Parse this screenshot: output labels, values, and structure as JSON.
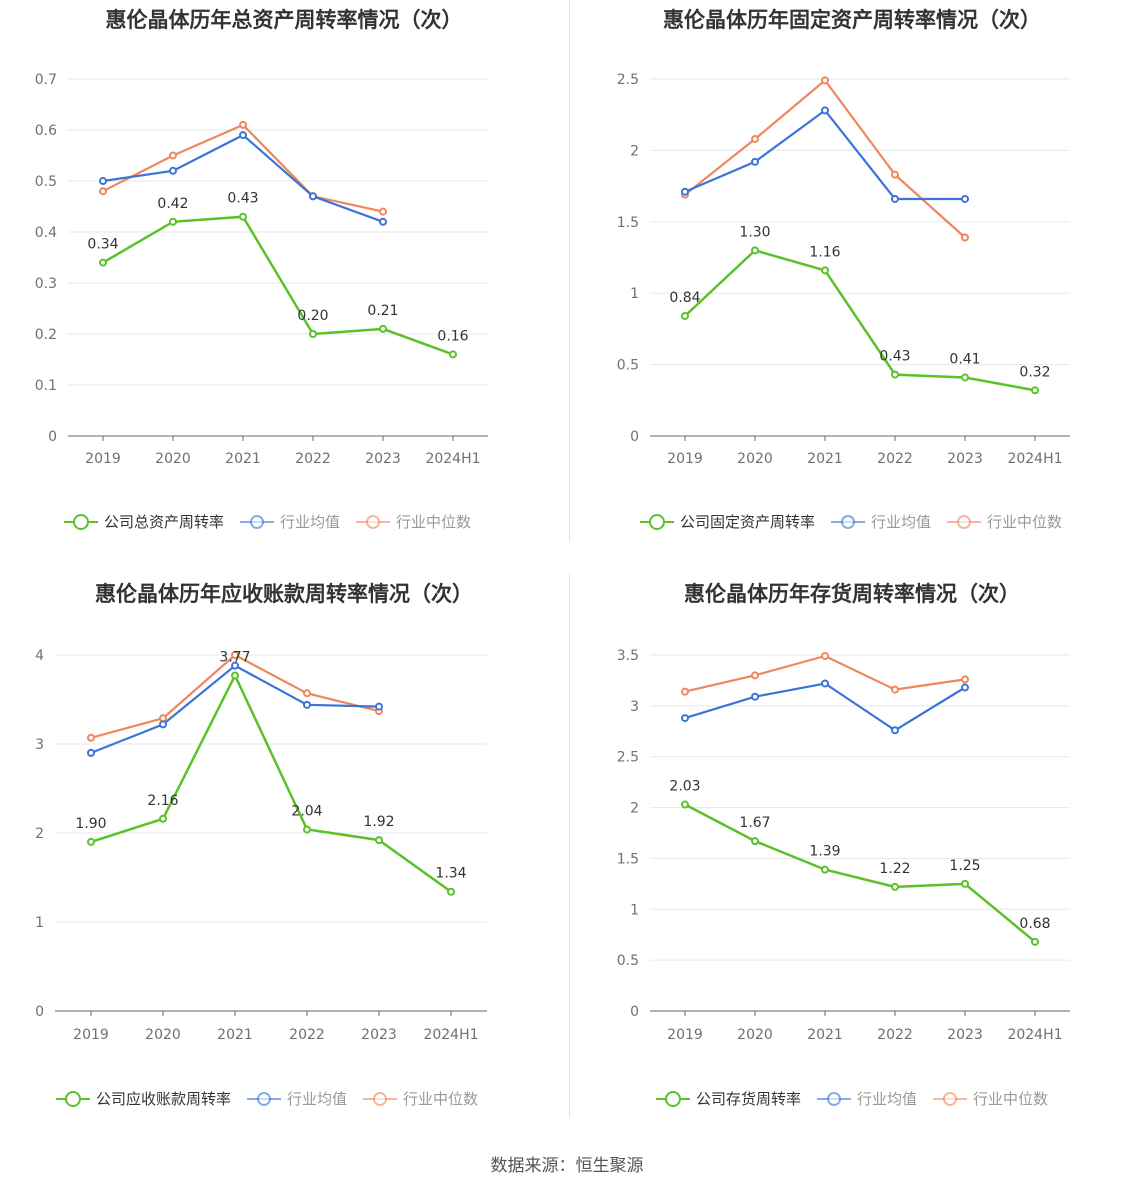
{
  "footer": "数据来源：恒生聚源",
  "colors": {
    "company": "#5ac12a",
    "average": "#3a74d9",
    "median": "#f0875c",
    "grid": "#e4e7ee",
    "axis": "#666666"
  },
  "chart_data": [
    {
      "type": "line",
      "title": "惠伦晶体历年总资产周转率情况（次）",
      "categories": [
        "2019",
        "2020",
        "2021",
        "2022",
        "2023",
        "2024H1"
      ],
      "ylim": [
        0,
        0.7
      ],
      "yticks": [
        0,
        0.1,
        0.2,
        0.3,
        0.4,
        0.5,
        0.6,
        0.7
      ],
      "ytick_labels": [
        "0",
        "0.1",
        "0.2",
        "0.3",
        "0.4",
        "0.5",
        "0.6",
        "0.7"
      ],
      "grid": true,
      "legend_position": "bottom",
      "series": [
        {
          "name": "公司总资产周转率",
          "role": "company",
          "values": [
            0.34,
            0.42,
            0.43,
            0.2,
            0.21,
            0.16
          ],
          "labels": [
            "0.34",
            "0.42",
            "0.43",
            "0.20",
            "0.21",
            "0.16"
          ]
        },
        {
          "name": "行业均值",
          "role": "average",
          "values": [
            0.5,
            0.52,
            0.59,
            0.47,
            0.42,
            null
          ]
        },
        {
          "name": "行业中位数",
          "role": "median",
          "values": [
            0.48,
            0.55,
            0.61,
            0.47,
            0.44,
            null
          ]
        }
      ]
    },
    {
      "type": "line",
      "title": "惠伦晶体历年固定资产周转率情况（次）",
      "categories": [
        "2019",
        "2020",
        "2021",
        "2022",
        "2023",
        "2024H1"
      ],
      "ylim": [
        0,
        2.5
      ],
      "yticks": [
        0,
        0.5,
        1,
        1.5,
        2,
        2.5
      ],
      "ytick_labels": [
        "0",
        "0.5",
        "1",
        "1.5",
        "2",
        "2.5"
      ],
      "grid": true,
      "legend_position": "bottom",
      "series": [
        {
          "name": "公司固定资产周转率",
          "role": "company",
          "values": [
            0.84,
            1.3,
            1.16,
            0.43,
            0.41,
            0.32
          ],
          "labels": [
            "0.84",
            "1.30",
            "1.16",
            "0.43",
            "0.41",
            "0.32"
          ]
        },
        {
          "name": "行业均值",
          "role": "average",
          "values": [
            1.71,
            1.92,
            2.28,
            1.66,
            1.66,
            null
          ]
        },
        {
          "name": "行业中位数",
          "role": "median",
          "values": [
            1.69,
            2.08,
            2.49,
            1.83,
            1.39,
            null
          ]
        }
      ]
    },
    {
      "type": "line",
      "title": "惠伦晶体历年应收账款周转率情况（次）",
      "categories": [
        "2019",
        "2020",
        "2021",
        "2022",
        "2023",
        "2024H1"
      ],
      "ylim": [
        0,
        4
      ],
      "yticks": [
        0,
        1,
        2,
        3,
        4
      ],
      "ytick_labels": [
        "0",
        "1",
        "2",
        "3",
        "4"
      ],
      "grid": true,
      "legend_position": "bottom",
      "series": [
        {
          "name": "公司应收账款周转率",
          "role": "company",
          "values": [
            1.9,
            2.16,
            3.77,
            2.04,
            1.92,
            1.34
          ],
          "labels": [
            "1.90",
            "2.16",
            "3.77",
            "2.04",
            "1.92",
            "1.34"
          ]
        },
        {
          "name": "行业均值",
          "role": "average",
          "values": [
            2.9,
            3.22,
            3.88,
            3.44,
            3.42,
            null
          ]
        },
        {
          "name": "行业中位数",
          "role": "median",
          "values": [
            3.07,
            3.29,
            4.0,
            3.57,
            3.37,
            null
          ]
        }
      ]
    },
    {
      "type": "line",
      "title": "惠伦晶体历年存货周转率情况（次）",
      "categories": [
        "2019",
        "2020",
        "2021",
        "2022",
        "2023",
        "2024H1"
      ],
      "ylim": [
        0,
        3.5
      ],
      "yticks": [
        0,
        0.5,
        1,
        1.5,
        2,
        2.5,
        3,
        3.5
      ],
      "ytick_labels": [
        "0",
        "0.5",
        "1",
        "1.5",
        "2",
        "2.5",
        "3",
        "3.5"
      ],
      "grid": true,
      "legend_position": "bottom",
      "series": [
        {
          "name": "公司存货周转率",
          "role": "company",
          "values": [
            2.03,
            1.67,
            1.39,
            1.22,
            1.25,
            0.68
          ],
          "labels": [
            "2.03",
            "1.67",
            "1.39",
            "1.22",
            "1.25",
            "0.68"
          ]
        },
        {
          "name": "行业均值",
          "role": "average",
          "values": [
            2.88,
            3.09,
            3.22,
            2.76,
            3.18,
            null
          ]
        },
        {
          "name": "行业中位数",
          "role": "median",
          "values": [
            3.14,
            3.3,
            3.49,
            3.16,
            3.26,
            null
          ]
        }
      ]
    }
  ]
}
